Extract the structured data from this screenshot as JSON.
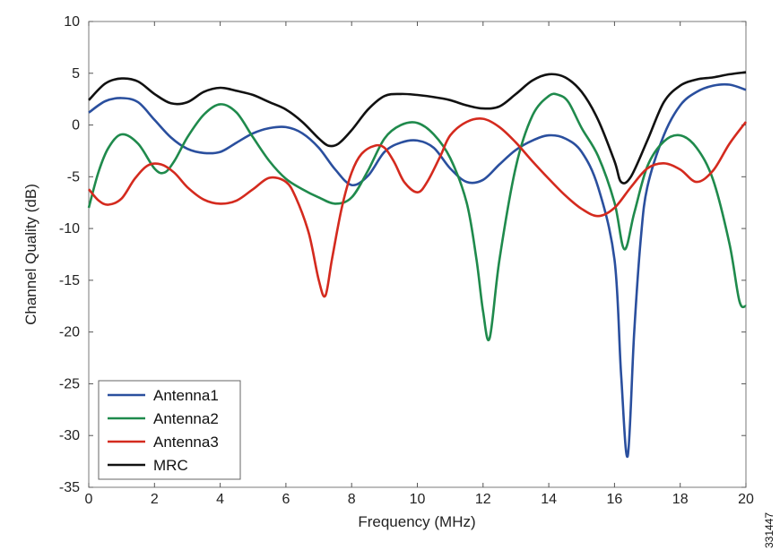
{
  "figure_id": "331447",
  "chart_data": {
    "type": "line",
    "xlabel": "Frequency (MHz)",
    "ylabel": "Channel Quality (dB)",
    "xlim": [
      0,
      20
    ],
    "ylim": [
      -35,
      10
    ],
    "xticks": [
      0,
      2,
      4,
      6,
      8,
      10,
      12,
      14,
      16,
      18,
      20
    ],
    "yticks": [
      10,
      5,
      0,
      -5,
      -10,
      -15,
      -20,
      -25,
      -30,
      -35
    ],
    "grid": false,
    "legend_position": "bottom-left",
    "series": [
      {
        "name": "Antenna1",
        "color": "#2a4f9e",
        "x": [
          0,
          0.5,
          1,
          1.5,
          2,
          2.5,
          3,
          3.5,
          4,
          4.5,
          5,
          5.5,
          6,
          6.5,
          7,
          7.5,
          8,
          8.5,
          9,
          9.5,
          10,
          10.5,
          11,
          11.5,
          12,
          12.5,
          13,
          13.5,
          14,
          14.5,
          15,
          15.5,
          16,
          16.2,
          16.4,
          16.6,
          16.8,
          17,
          17.5,
          18,
          18.5,
          19,
          19.5,
          20
        ],
        "y": [
          1.2,
          2.3,
          2.6,
          2.2,
          0.5,
          -1.2,
          -2.3,
          -2.7,
          -2.6,
          -1.7,
          -0.8,
          -0.3,
          -0.2,
          -0.8,
          -2.2,
          -4.3,
          -5.8,
          -4.9,
          -2.6,
          -1.7,
          -1.5,
          -2.2,
          -4.2,
          -5.5,
          -5.3,
          -3.8,
          -2.4,
          -1.5,
          -1.0,
          -1.3,
          -2.6,
          -6.0,
          -13.0,
          -24.0,
          -32.0,
          -20.0,
          -11.0,
          -6.0,
          -1.0,
          1.9,
          3.2,
          3.8,
          3.9,
          3.4
        ]
      },
      {
        "name": "Antenna2",
        "color": "#1f8a4c",
        "x": [
          0,
          0.3,
          0.6,
          1,
          1.5,
          2,
          2.3,
          2.6,
          3,
          3.5,
          4,
          4.5,
          5,
          5.5,
          6,
          6.5,
          7,
          7.5,
          8,
          8.5,
          9,
          9.5,
          10,
          10.5,
          11,
          11.5,
          11.8,
          12,
          12.2,
          12.5,
          13,
          13.5,
          14,
          14.3,
          14.6,
          15,
          15.5,
          16,
          16.3,
          16.6,
          17,
          17.5,
          18,
          18.5,
          19,
          19.5,
          19.8,
          20
        ],
        "y": [
          -8.0,
          -4.5,
          -2.2,
          -0.9,
          -1.8,
          -4.2,
          -4.6,
          -3.5,
          -1.2,
          1.0,
          2.0,
          1.2,
          -1.2,
          -3.5,
          -5.2,
          -6.2,
          -7.0,
          -7.6,
          -7.0,
          -4.4,
          -1.3,
          0.0,
          0.2,
          -0.9,
          -3.2,
          -7.5,
          -13.0,
          -18.0,
          -20.6,
          -13.0,
          -4.0,
          0.9,
          2.8,
          2.9,
          2.2,
          -0.3,
          -3.0,
          -7.5,
          -12.0,
          -8.5,
          -4.0,
          -1.6,
          -1.0,
          -2.2,
          -5.3,
          -11.5,
          -17.0,
          -17.5
        ]
      },
      {
        "name": "Antenna3",
        "color": "#d42a1e",
        "x": [
          0,
          0.3,
          0.6,
          1,
          1.4,
          1.8,
          2.2,
          2.6,
          3,
          3.5,
          4,
          4.5,
          5,
          5.5,
          6,
          6.3,
          6.7,
          7,
          7.2,
          7.4,
          7.7,
          8,
          8.3,
          8.7,
          9,
          9.3,
          9.6,
          10,
          10.3,
          10.7,
          11,
          11.5,
          12,
          12.5,
          13,
          13.5,
          14,
          14.5,
          15,
          15.5,
          16,
          16.5,
          17,
          17.5,
          18,
          18.5,
          19,
          19.5,
          20
        ],
        "y": [
          -6.2,
          -7.3,
          -7.7,
          -7.1,
          -5.2,
          -3.9,
          -3.8,
          -4.6,
          -6.0,
          -7.2,
          -7.6,
          -7.3,
          -6.2,
          -5.1,
          -5.5,
          -7.0,
          -10.5,
          -15.0,
          -16.5,
          -13.0,
          -8.0,
          -4.6,
          -2.8,
          -2.0,
          -2.2,
          -3.6,
          -5.5,
          -6.5,
          -5.5,
          -3.0,
          -1.0,
          0.3,
          0.6,
          -0.2,
          -1.7,
          -3.5,
          -5.2,
          -6.8,
          -8.1,
          -8.8,
          -8.0,
          -6.0,
          -4.2,
          -3.7,
          -4.3,
          -5.5,
          -4.4,
          -1.8,
          0.3
        ]
      },
      {
        "name": "MRC",
        "color": "#111111",
        "x": [
          0,
          0.5,
          1,
          1.5,
          2,
          2.5,
          3,
          3.5,
          4,
          4.5,
          5,
          5.5,
          6,
          6.5,
          7,
          7.3,
          7.6,
          8,
          8.5,
          9,
          9.5,
          10,
          10.5,
          11,
          11.5,
          12,
          12.5,
          13,
          13.5,
          14,
          14.5,
          15,
          15.5,
          16,
          16.2,
          16.5,
          17,
          17.5,
          18,
          18.5,
          19,
          19.5,
          20
        ],
        "y": [
          2.4,
          4.0,
          4.5,
          4.2,
          3.0,
          2.1,
          2.2,
          3.2,
          3.6,
          3.3,
          2.9,
          2.2,
          1.5,
          0.3,
          -1.3,
          -2.0,
          -1.8,
          -0.5,
          1.5,
          2.8,
          3.0,
          2.9,
          2.7,
          2.4,
          1.9,
          1.6,
          1.8,
          3.0,
          4.3,
          4.9,
          4.6,
          3.2,
          0.5,
          -3.5,
          -5.5,
          -5.0,
          -1.5,
          2.2,
          3.8,
          4.4,
          4.6,
          4.9,
          5.1
        ]
      }
    ]
  }
}
